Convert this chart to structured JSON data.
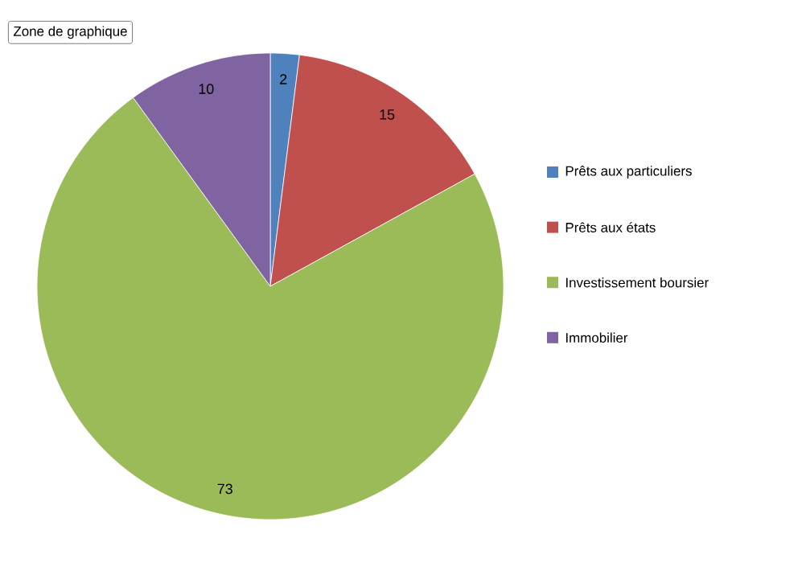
{
  "chart_data": {
    "type": "pie",
    "categories": [
      "Prêts aux particuliers",
      "Prêts aux états",
      "Investissement boursier",
      "Immobilier"
    ],
    "values": [
      2,
      15,
      73,
      10
    ],
    "colors": [
      "#4f81bd",
      "#c0504d",
      "#9bbb59",
      "#8064a2"
    ],
    "data_labels": true,
    "legend": "right",
    "annotations": [
      "Zone de graphique"
    ]
  }
}
